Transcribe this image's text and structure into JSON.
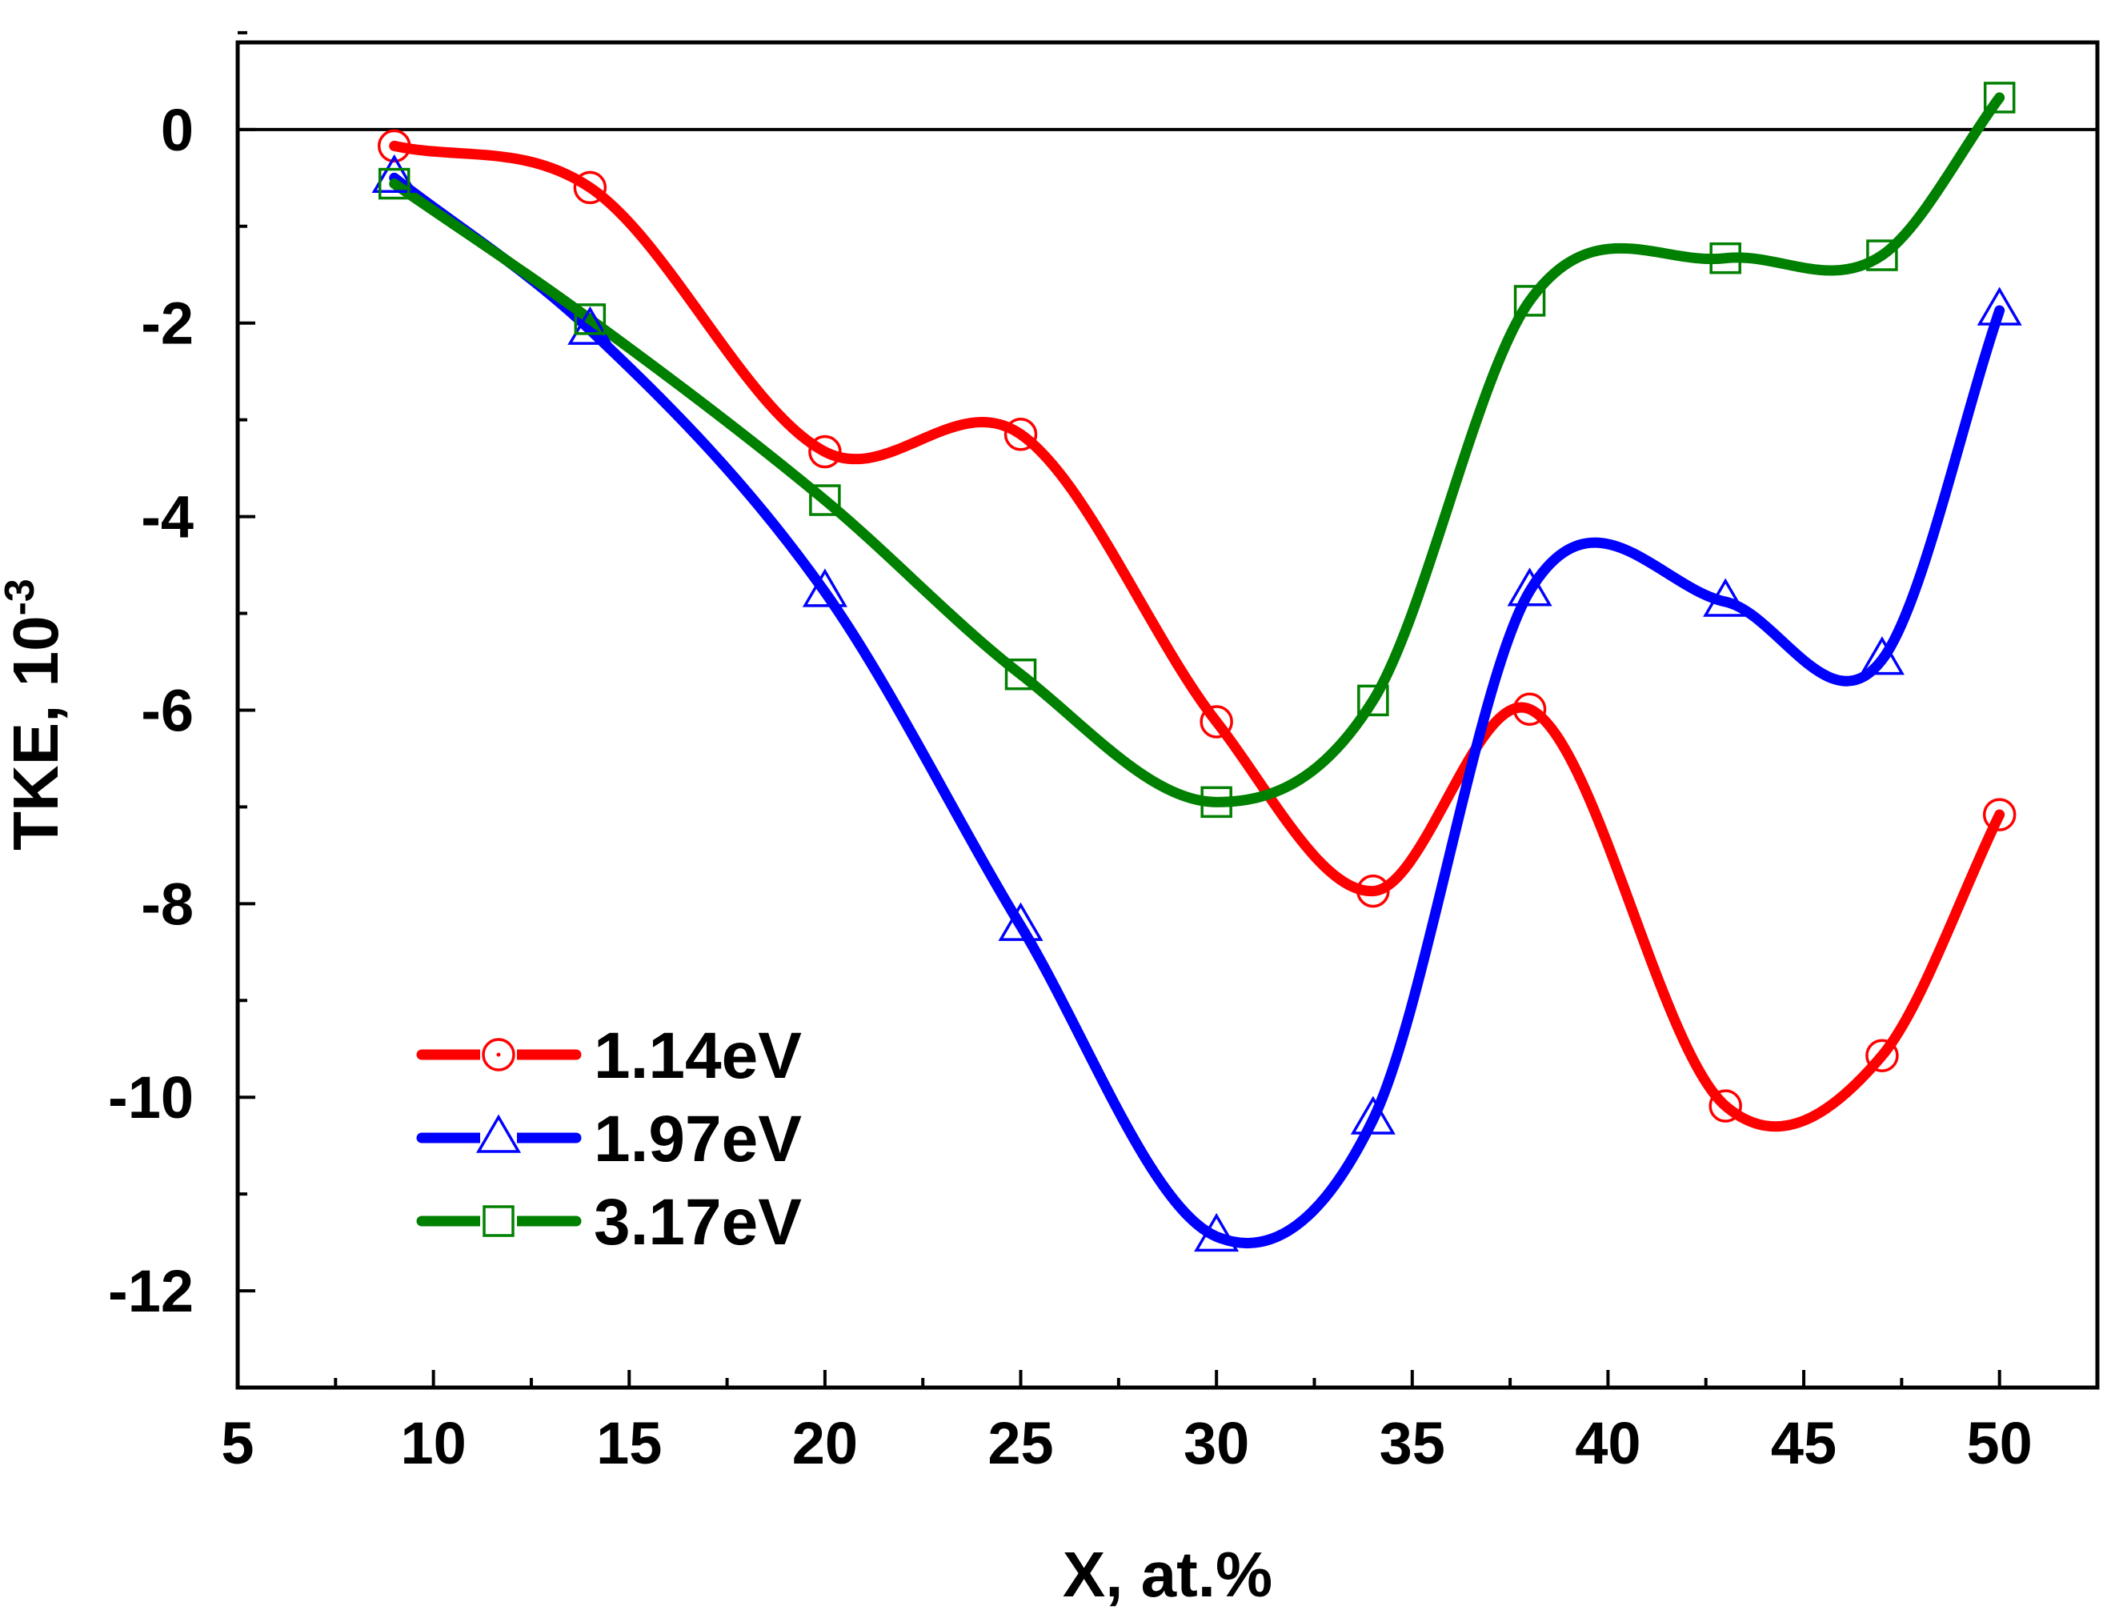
{
  "chart_data": {
    "type": "line",
    "title": "",
    "xlabel": "X, at.%",
    "ylabel": "TKE, 10",
    "ylabel_exponent": "-3",
    "xlim": [
      5,
      52.5
    ],
    "ylim": [
      -13,
      0.9
    ],
    "xticks": [
      5,
      10,
      15,
      20,
      25,
      30,
      35,
      40,
      45,
      50
    ],
    "yticks": [
      0,
      -2,
      -4,
      -6,
      -8,
      -10,
      -12
    ],
    "xtick_labels": [
      "5",
      "10",
      "15",
      "20",
      "25",
      "30",
      "35",
      "40",
      "45",
      "50"
    ],
    "ytick_labels": [
      "0",
      "-2",
      "-4",
      "-6",
      "-8",
      "-10",
      "-12"
    ],
    "zero_line": true,
    "grid": false,
    "legend_position": "bottom-left",
    "series": [
      {
        "name": "1.14eV",
        "color": "#ff0000",
        "marker": "circle",
        "x": [
          9,
          14,
          20,
          25,
          30,
          34,
          38,
          43,
          47,
          50
        ],
        "y": [
          -0.17,
          -0.6,
          -3.33,
          -3.15,
          -6.12,
          -7.87,
          -5.99,
          -10.09,
          -9.57,
          -7.08
        ]
      },
      {
        "name": "1.97eV",
        "color": "#0000ff",
        "marker": "triangle",
        "x": [
          9,
          14,
          20,
          25,
          30,
          34,
          38,
          43,
          47,
          50
        ],
        "y": [
          -0.5,
          -2.07,
          -4.78,
          -8.23,
          -11.44,
          -10.23,
          -4.77,
          -4.88,
          -5.48,
          -1.87
        ]
      },
      {
        "name": "3.17eV",
        "color": "#008000",
        "marker": "square",
        "x": [
          9,
          14,
          20,
          25,
          30,
          34,
          38,
          43,
          47,
          50
        ],
        "y": [
          -0.56,
          -1.96,
          -3.83,
          -5.63,
          -6.95,
          -5.9,
          -1.77,
          -1.33,
          -1.3,
          0.33
        ]
      }
    ]
  }
}
